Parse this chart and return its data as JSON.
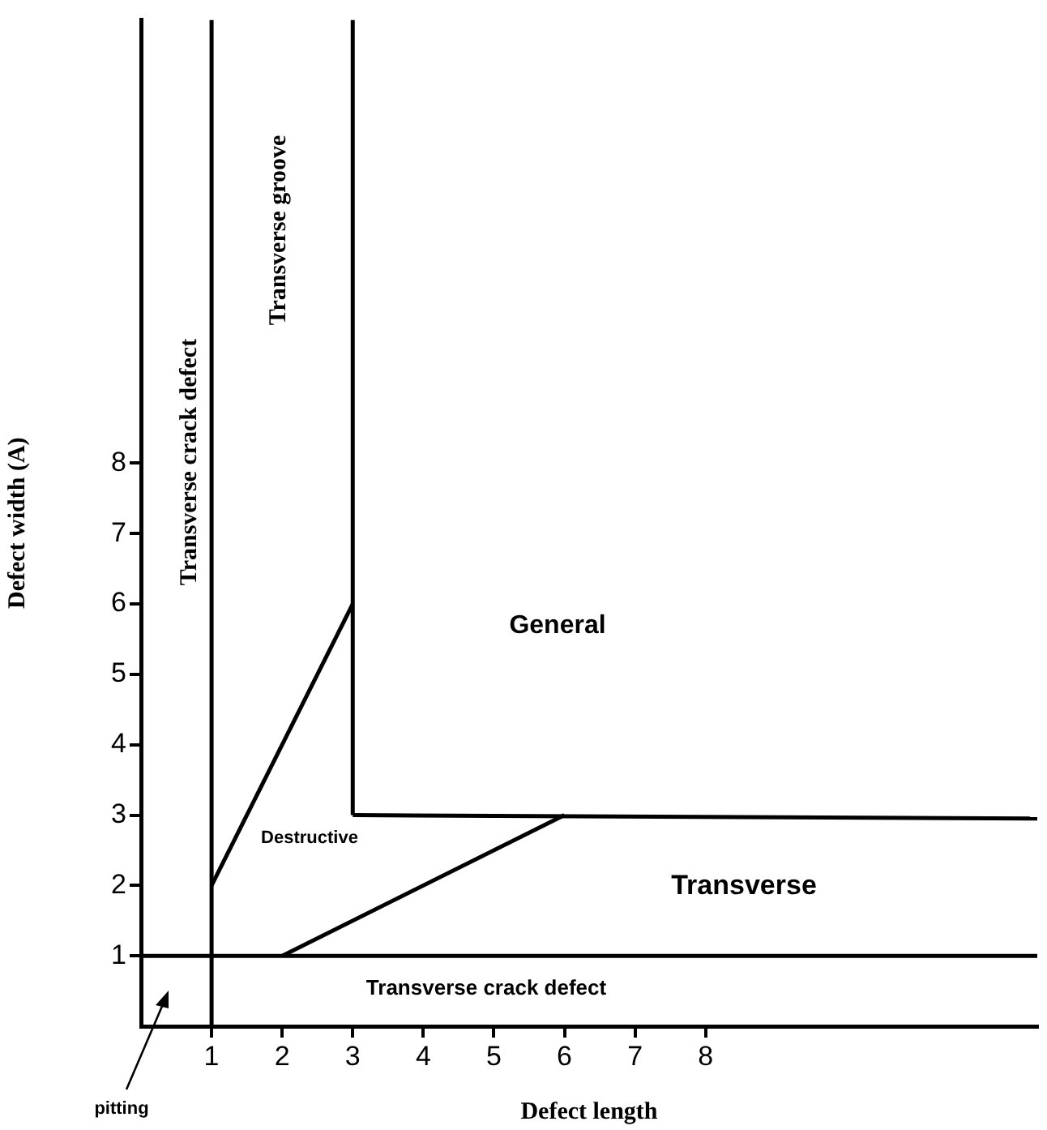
{
  "chart_data": {
    "type": "line",
    "xlabel": "Defect length",
    "ylabel": "Defect width (A)",
    "xlim": [
      0,
      12.7
    ],
    "ylim": [
      0,
      14.3
    ],
    "xticks": [
      1,
      2,
      3,
      4,
      5,
      6,
      7,
      8
    ],
    "yticks": [
      1,
      2,
      3,
      4,
      5,
      6,
      7,
      8
    ],
    "grid": false,
    "legend": false,
    "marker": "none",
    "line_style": "solid",
    "series": [
      {
        "color": "#000000",
        "x": [
          0,
          12.7
        ],
        "values": [
          1,
          1
        ]
      },
      {
        "color": "#000000",
        "x": [
          1,
          1
        ],
        "values": [
          0,
          14.3
        ]
      },
      {
        "color": "#000000",
        "x": [
          3,
          3
        ],
        "values": [
          3,
          14.3
        ]
      },
      {
        "color": "#000000",
        "x": [
          3,
          12.7
        ],
        "values": [
          3,
          2.95
        ]
      },
      {
        "color": "#000000",
        "x": [
          1,
          3
        ],
        "values": [
          2,
          6
        ]
      },
      {
        "color": "#000000",
        "x": [
          2,
          6
        ],
        "values": [
          1,
          3
        ]
      }
    ],
    "annotations": [
      "Transverse crack defect",
      "Transverse groove",
      "General",
      "Destructive",
      "Transverse",
      "Transverse crack defect",
      "pitting"
    ]
  }
}
